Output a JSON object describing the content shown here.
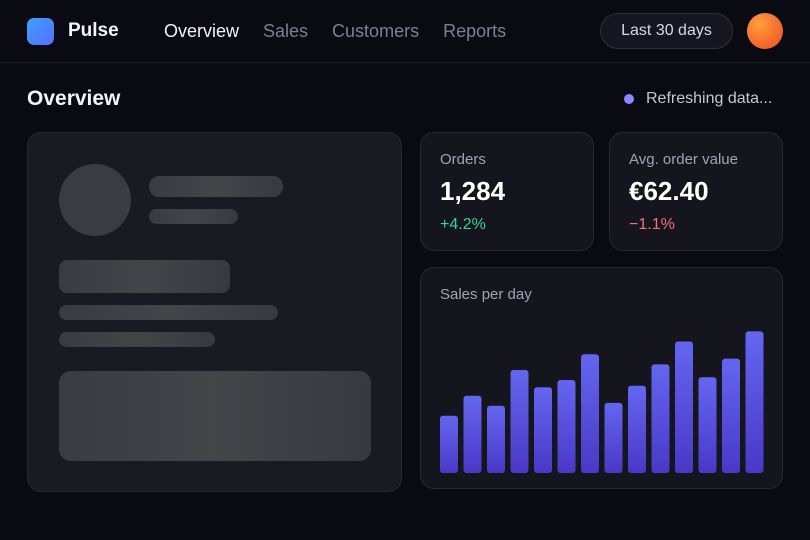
{
  "app": {
    "brand": "Pulse"
  },
  "nav": {
    "items": [
      "Overview",
      "Sales",
      "Customers",
      "Reports"
    ],
    "active": 0
  },
  "header": {
    "date_range": "Last 30 days"
  },
  "page": {
    "title": "Overview",
    "status": "Refreshing data..."
  },
  "stats": {
    "orders": {
      "label": "Orders",
      "value": "1,284",
      "change": "+4.2%",
      "change_color": "#34d399"
    },
    "aov": {
      "label": "Avg. order value",
      "value": "€62.40",
      "change": "−1.1%",
      "change_color": "#f87171"
    }
  },
  "sales_chart": {
    "title": "Sales per day"
  },
  "chart_data": {
    "type": "bar",
    "title": "Sales per day",
    "values": [
      40,
      54,
      47,
      72,
      60,
      65,
      83,
      49,
      61,
      76,
      92,
      67,
      80,
      99
    ],
    "ylim": [
      0,
      100
    ],
    "color_top": "#6466f0",
    "color_bottom": "#4a38c8"
  },
  "colors": {
    "accent": "#6466f0",
    "background": "#0a0b12"
  }
}
